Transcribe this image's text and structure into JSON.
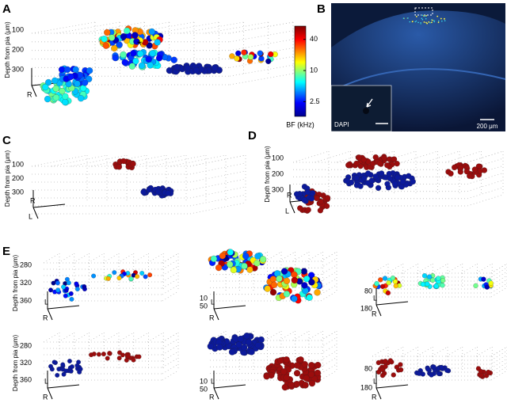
{
  "panels": [
    {
      "label": "A",
      "y_axis_label": "Depth from pia (μm)",
      "yticks": [
        100,
        200,
        300
      ],
      "axis_letters": [
        "R"
      ],
      "colorbar": {
        "title": "BF (kHz)",
        "ticks": [
          40,
          10,
          2.5
        ],
        "range": [
          1.3,
          72
        ],
        "log": true
      }
    },
    {
      "label": "B",
      "inset_label": "DAPI",
      "scale_bar": "200 μm"
    },
    {
      "label": "C",
      "y_axis_label": "Depth from pia (μm)",
      "yticks": [
        100,
        200,
        300
      ],
      "axis_letters": [
        "L",
        "R"
      ]
    },
    {
      "label": "D",
      "y_axis_label": "Depth from pia (μm)",
      "yticks": [
        100,
        200,
        300
      ],
      "axis_letters": [
        "L",
        "R"
      ]
    },
    {
      "label": "E",
      "subplots": [
        {
          "y_axis_label": "Depth from pia (μm)",
          "yticks": [
            280,
            320,
            360
          ],
          "axis_letters": [
            "R",
            "L"
          ]
        },
        {
          "yticks": [
            10,
            50
          ],
          "axis_letters": [
            "R",
            "L"
          ]
        },
        {
          "yticks": [
            80,
            180
          ],
          "axis_letters": [
            "R",
            "L"
          ]
        },
        {
          "y_axis_label": "Depth from pia (μm)",
          "yticks": [
            280,
            320,
            360
          ],
          "axis_letters": [
            "R",
            "L"
          ]
        },
        {
          "yticks": [
            10,
            50
          ],
          "axis_letters": [
            "R",
            "L"
          ]
        },
        {
          "yticks": [
            80,
            180
          ],
          "axis_letters": [
            "R",
            "L"
          ]
        }
      ]
    }
  ]
}
